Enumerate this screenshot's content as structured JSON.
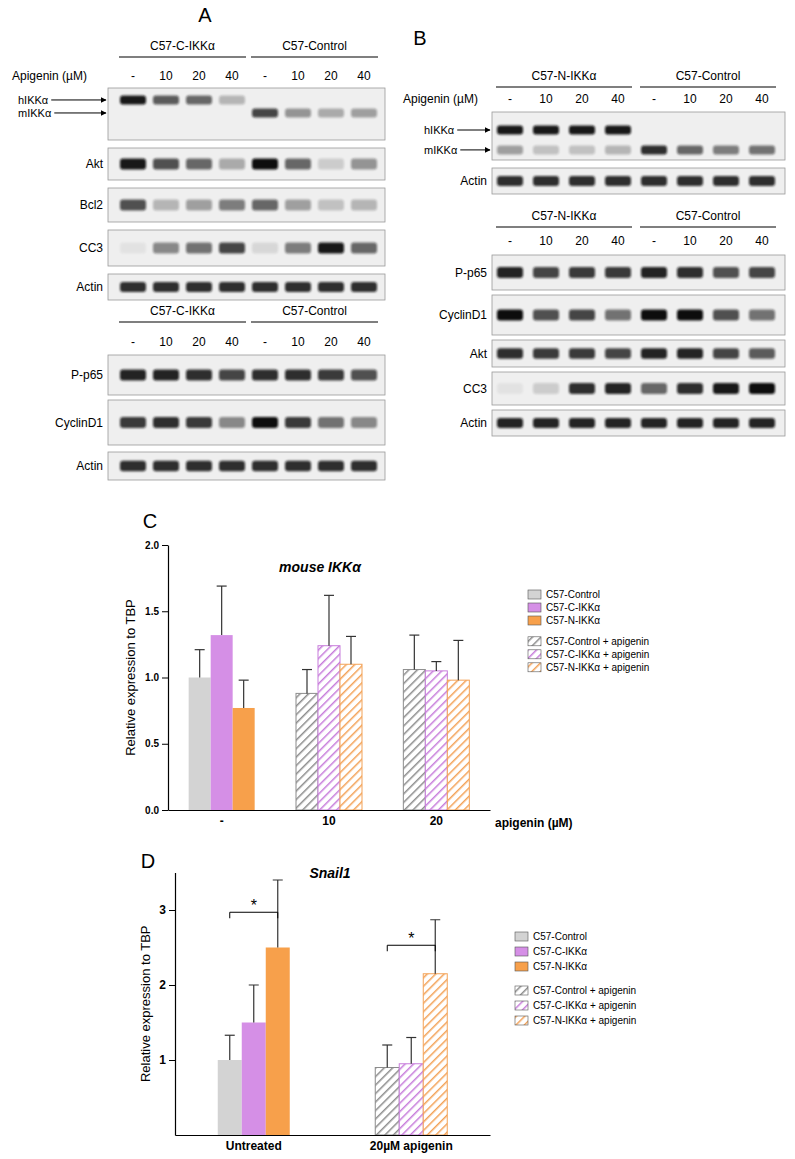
{
  "blots": [
    {
      "label": "A",
      "groups": [
        {
          "headers": [
            "C57-C-IKKα",
            "C57-Control"
          ],
          "apigenin_label": "Apigenin (µM)",
          "lanes": [
            "-",
            "10",
            "20",
            "40",
            "-",
            "10",
            "20",
            "40"
          ],
          "rows": [
            {
              "bands": [
                {
                  "name": "hIKKα",
                  "intensities": [
                    0.95,
                    0.65,
                    0.6,
                    0.25,
                    0,
                    0,
                    0,
                    0
                  ]
                },
                {
                  "name": "mIKKα",
                  "intensities": [
                    0,
                    0,
                    0,
                    0,
                    0.75,
                    0.4,
                    0.3,
                    0.35
                  ]
                }
              ]
            },
            {
              "name": "Akt",
              "intensities": [
                0.95,
                0.7,
                0.6,
                0.3,
                1.0,
                0.6,
                0.15,
                0.4
              ]
            },
            {
              "name": "Bcl2",
              "intensities": [
                0.7,
                0.25,
                0.35,
                0.5,
                0.6,
                0.35,
                0.2,
                0.25
              ]
            },
            {
              "name": "CC3",
              "intensities": [
                0.05,
                0.45,
                0.55,
                0.75,
                0.1,
                0.5,
                0.95,
                0.6
              ]
            },
            {
              "name": "Actin",
              "intensities": [
                0.85,
                0.85,
                0.85,
                0.85,
                0.85,
                0.85,
                0.85,
                0.85
              ]
            }
          ]
        },
        {
          "headers": [
            "C57-C-IKKα",
            "C57-Control"
          ],
          "lanes": [
            "-",
            "10",
            "20",
            "40",
            "-",
            "10",
            "20",
            "40"
          ],
          "rows": [
            {
              "name": "P-p65",
              "intensities": [
                0.9,
                0.9,
                0.85,
                0.75,
                0.85,
                0.85,
                0.8,
                0.7
              ]
            },
            {
              "name": "CyclinD1",
              "intensities": [
                0.8,
                0.85,
                0.8,
                0.45,
                1.0,
                0.8,
                0.55,
                0.45
              ]
            },
            {
              "name": "Actin",
              "intensities": [
                0.85,
                0.85,
                0.85,
                0.85,
                0.85,
                0.85,
                0.85,
                0.85
              ]
            }
          ]
        }
      ]
    },
    {
      "label": "B",
      "groups": [
        {
          "headers": [
            "C57-N-IKKα",
            "C57-Control"
          ],
          "apigenin_label": "Apigenin (µM)",
          "lanes": [
            "-",
            "10",
            "20",
            "40",
            "-",
            "10",
            "20",
            "40"
          ],
          "rows": [
            {
              "bands": [
                {
                  "name": "hIKKα",
                  "intensities": [
                    0.95,
                    0.95,
                    0.95,
                    0.95,
                    0,
                    0,
                    0,
                    0
                  ]
                },
                {
                  "name": "mIKKα",
                  "intensities": [
                    0.35,
                    0.2,
                    0.2,
                    0.25,
                    0.85,
                    0.6,
                    0.5,
                    0.55
                  ]
                }
              ]
            },
            {
              "name": "Actin",
              "intensities": [
                0.85,
                0.85,
                0.85,
                0.85,
                0.85,
                0.85,
                0.85,
                0.85
              ]
            }
          ]
        },
        {
          "headers": [
            "C57-N-IKKα",
            "C57-Control"
          ],
          "lanes": [
            "-",
            "10",
            "20",
            "40",
            "-",
            "10",
            "20",
            "40"
          ],
          "rows": [
            {
              "name": "P-p65",
              "intensities": [
                0.9,
                0.75,
                0.8,
                0.8,
                0.9,
                0.85,
                0.7,
                0.75
              ]
            },
            {
              "name": "CyclinD1",
              "intensities": [
                1.0,
                0.7,
                0.75,
                0.55,
                1.0,
                1.0,
                0.7,
                0.55
              ]
            },
            {
              "name": "Akt",
              "intensities": [
                0.85,
                0.8,
                0.8,
                0.75,
                0.9,
                0.9,
                0.75,
                0.65
              ]
            },
            {
              "name": "CC3",
              "intensities": [
                0.05,
                0.15,
                0.85,
                0.9,
                0.6,
                0.85,
                0.95,
                1.0
              ]
            },
            {
              "name": "Actin",
              "intensities": [
                0.9,
                0.9,
                0.9,
                0.9,
                0.9,
                0.9,
                0.9,
                0.9
              ]
            }
          ]
        }
      ]
    }
  ],
  "chart_data": [
    {
      "panel_label": "C",
      "type": "bar",
      "title": "mouse IKKα",
      "x_label": "apigenin (µM)",
      "y_label": "Relative expression to TBP",
      "categories": [
        "-",
        "10",
        "20"
      ],
      "ylim": [
        0,
        2
      ],
      "yticks": [
        {
          "value": 0,
          "label": "0.0"
        },
        {
          "value": 0.5,
          "label": "0.5"
        },
        {
          "value": 1,
          "label": "1.0"
        },
        {
          "value": 1.5,
          "label": "1.5"
        },
        {
          "value": 2,
          "label": "2.0"
        }
      ],
      "series": [
        {
          "name": "C57-Control",
          "color": "#d3d3d3",
          "values": [
            1.0,
            null,
            null
          ],
          "errors": [
            0.21,
            null,
            null
          ]
        },
        {
          "name": "C57-C-IKKα",
          "color": "#d58fe6",
          "values": [
            1.32,
            null,
            null
          ],
          "errors": [
            0.37,
            null,
            null
          ]
        },
        {
          "name": "C57-N-IKKα",
          "color": "#f7a04b",
          "values": [
            0.77,
            null,
            null
          ],
          "errors": [
            0.21,
            null,
            null
          ]
        },
        {
          "name": "C57-Control + apigenin",
          "color": "#8c8c8c",
          "line_style": "hatch",
          "values": [
            null,
            0.88,
            1.06
          ],
          "errors": [
            null,
            0.18,
            0.26
          ]
        },
        {
          "name": "C57-C-IKKα + apigenin",
          "color": "#c77ddb",
          "line_style": "hatch",
          "values": [
            null,
            1.24,
            1.05
          ],
          "errors": [
            null,
            0.38,
            0.07
          ]
        },
        {
          "name": "C57-N-IKKα + apigenin",
          "color": "#f3a257",
          "line_style": "hatch",
          "values": [
            null,
            1.1,
            0.98
          ],
          "errors": [
            null,
            0.21,
            0.3
          ]
        }
      ],
      "legend": "right"
    },
    {
      "panel_label": "D",
      "type": "bar",
      "title": "Snail1",
      "y_label": "Relative expression to TBP",
      "categories": [
        "Untreated",
        "20µM apigenin"
      ],
      "ylim": [
        0,
        3.5
      ],
      "yticks": [
        1,
        2,
        3
      ],
      "series": [
        {
          "name": "C57-Control",
          "color": "#d3d3d3",
          "values": [
            1.0,
            null
          ],
          "errors": [
            0.33,
            null
          ]
        },
        {
          "name": "C57-C-IKKα",
          "color": "#d58fe6",
          "values": [
            1.5,
            null
          ],
          "errors": [
            0.5,
            null
          ]
        },
        {
          "name": "C57-N-IKKα",
          "color": "#f7a04b",
          "values": [
            2.5,
            null
          ],
          "errors": [
            0.9,
            null
          ]
        },
        {
          "name": "C57-Control + apigenin",
          "color": "#8c8c8c",
          "line_style": "hatch",
          "values": [
            null,
            0.9
          ],
          "errors": [
            null,
            0.3
          ]
        },
        {
          "name": "C57-C-IKKα + apigenin",
          "color": "#c77ddb",
          "line_style": "hatch",
          "values": [
            null,
            0.95
          ],
          "errors": [
            null,
            0.35
          ]
        },
        {
          "name": "C57-N-IKKα + apigenin",
          "color": "#f3a257",
          "line_style": "hatch",
          "values": [
            null,
            2.15
          ],
          "errors": [
            null,
            0.72
          ]
        }
      ],
      "annotations": [
        {
          "text": "*",
          "category": "Untreated",
          "from": "C57-Control",
          "to": "C57-N-IKKα",
          "y": 2.97
        },
        {
          "text": "*",
          "category": "20µM apigenin",
          "from": "C57-Control + apigenin",
          "to": "C57-N-IKKα + apigenin",
          "y": 2.53
        }
      ],
      "legend": "right"
    }
  ]
}
